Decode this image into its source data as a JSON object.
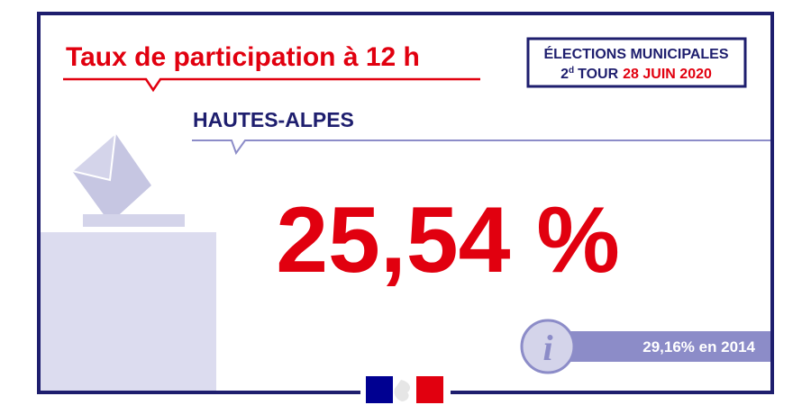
{
  "header": {
    "title": "Taux de participation à 12 h"
  },
  "badge": {
    "line1": "ÉLECTIONS MUNICIPALES",
    "round_number": "2",
    "round_suffix": "d",
    "round_word": "TOUR",
    "date": "28 JUIN 2020"
  },
  "region": "HAUTES-ALPES",
  "result": "25,54 %",
  "comparison": "29,16% en 2014"
}
